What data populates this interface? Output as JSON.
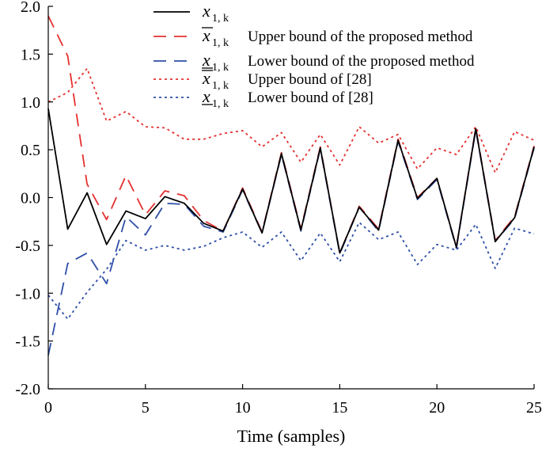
{
  "chart_data": {
    "type": "line",
    "xlabel": "Time (samples)",
    "ylabel": "",
    "xlim": [
      0,
      25
    ],
    "ylim": [
      -2.0,
      2.0
    ],
    "xticks": [
      "0",
      "5",
      "10",
      "15",
      "20",
      "25"
    ],
    "yticks": [
      "2.0",
      "1.5",
      "1.0",
      "0.5",
      "0.0",
      "-0.5",
      "-1.0",
      "-1.5",
      "-2.0"
    ],
    "grid": false,
    "legend_position": "top-right",
    "x": [
      0,
      1,
      2,
      3,
      4,
      5,
      6,
      7,
      8,
      9,
      10,
      11,
      12,
      13,
      14,
      15,
      16,
      17,
      18,
      19,
      20,
      21,
      22,
      23,
      24,
      25
    ],
    "series": [
      {
        "name": "x1,k",
        "legend_symbol": "x",
        "legend_subscript": "1, k",
        "legend_overline": false,
        "legend_underline": false,
        "legend_text": "",
        "color": "#000000",
        "dash": "",
        "values": [
          0.93,
          -0.33,
          0.05,
          -0.49,
          -0.14,
          -0.22,
          0.01,
          -0.06,
          -0.27,
          -0.35,
          0.09,
          -0.37,
          0.46,
          -0.34,
          0.52,
          -0.58,
          -0.1,
          -0.34,
          0.6,
          -0.01,
          0.2,
          -0.52,
          0.72,
          -0.46,
          -0.21,
          0.53
        ]
      },
      {
        "name": "upper bound proposed",
        "legend_symbol": "x",
        "legend_subscript": "1, k",
        "legend_overline": true,
        "legend_underline": false,
        "legend_text": "Upper bound of the proposed method",
        "color": "#e53030",
        "dash": "16,10",
        "values": [
          1.9,
          1.48,
          0.14,
          -0.23,
          0.23,
          -0.18,
          0.07,
          0.02,
          -0.24,
          -0.35,
          0.1,
          -0.36,
          0.47,
          -0.33,
          0.53,
          -0.58,
          -0.09,
          -0.33,
          0.61,
          0.0,
          0.2,
          -0.52,
          0.73,
          -0.45,
          -0.2,
          0.54
        ]
      },
      {
        "name": "lower bound proposed",
        "legend_symbol": "x",
        "legend_subscript": "1, k",
        "legend_overline": false,
        "legend_underline": true,
        "legend_text": "Lower bound of the proposed method",
        "color": "#2f4fa8",
        "dash": "16,10",
        "values": [
          -1.65,
          -0.69,
          -0.58,
          -0.9,
          -0.2,
          -0.39,
          -0.06,
          -0.07,
          -0.3,
          -0.36,
          0.08,
          -0.37,
          0.45,
          -0.35,
          0.51,
          -0.59,
          -0.1,
          -0.35,
          0.59,
          -0.02,
          0.19,
          -0.53,
          0.71,
          -0.46,
          -0.22,
          0.52
        ]
      },
      {
        "name": "upper bound of [28]",
        "legend_symbol": "x",
        "legend_subscript": "1, k",
        "legend_overline": true,
        "legend_underline": false,
        "legend_text": "Upper bound of [28]",
        "color": "#e53030",
        "dash": "3,4",
        "values": [
          1.0,
          1.1,
          1.35,
          0.8,
          0.9,
          0.74,
          0.73,
          0.61,
          0.61,
          0.67,
          0.7,
          0.53,
          0.68,
          0.37,
          0.66,
          0.34,
          0.74,
          0.57,
          0.66,
          0.3,
          0.52,
          0.45,
          0.74,
          0.26,
          0.69,
          0.6
        ]
      },
      {
        "name": "lower bound of [28]",
        "legend_symbol": "x",
        "legend_subscript": "1, k",
        "legend_overline": false,
        "legend_underline": true,
        "legend_text": "Lower bound of [28]",
        "color": "#2f4fa8",
        "dash": "3,4",
        "values": [
          -1.02,
          -1.27,
          -0.99,
          -0.75,
          -0.45,
          -0.55,
          -0.5,
          -0.55,
          -0.51,
          -0.42,
          -0.36,
          -0.52,
          -0.36,
          -0.66,
          -0.37,
          -0.67,
          -0.26,
          -0.44,
          -0.36,
          -0.7,
          -0.49,
          -0.55,
          -0.28,
          -0.74,
          -0.32,
          -0.38
        ]
      }
    ]
  }
}
